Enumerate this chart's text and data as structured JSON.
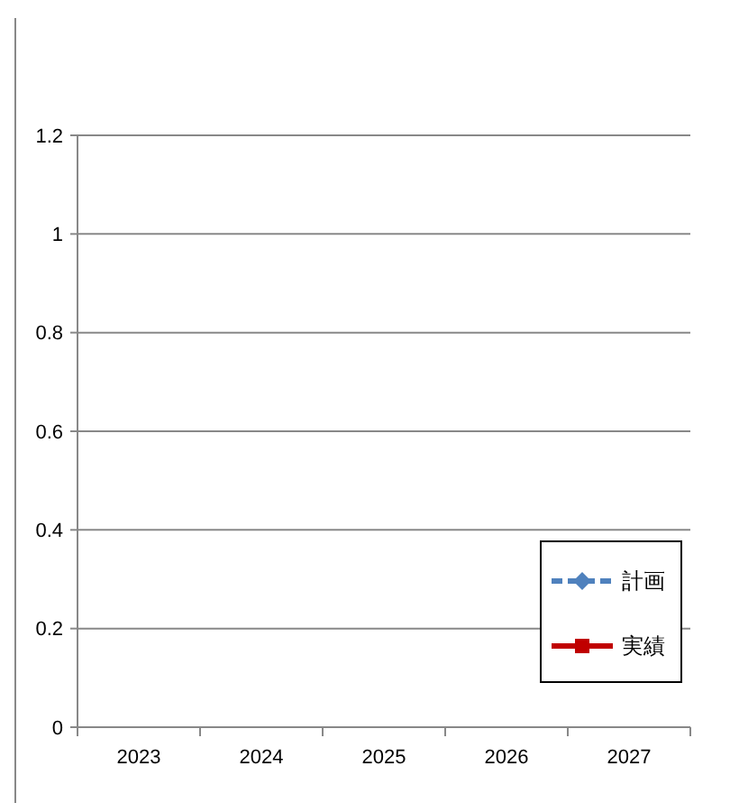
{
  "chart_data": {
    "type": "line",
    "categories": [
      "2023",
      "2024",
      "2025",
      "2026",
      "2027"
    ],
    "series": [
      {
        "name": "計画",
        "color": "#4f81bd",
        "values": [
          null,
          null,
          null,
          null,
          null
        ],
        "marker": "diamond",
        "line_style": "dashed"
      },
      {
        "name": "実績",
        "color": "#c00000",
        "values": [
          null,
          null,
          null,
          null,
          null
        ],
        "marker": "square",
        "line_style": "solid"
      }
    ],
    "ylim": [
      0,
      1.2
    ],
    "yticks": [
      0,
      0.2,
      0.4,
      0.6,
      0.8,
      1,
      1.2
    ],
    "grid": "y",
    "legend": "bottom right"
  }
}
